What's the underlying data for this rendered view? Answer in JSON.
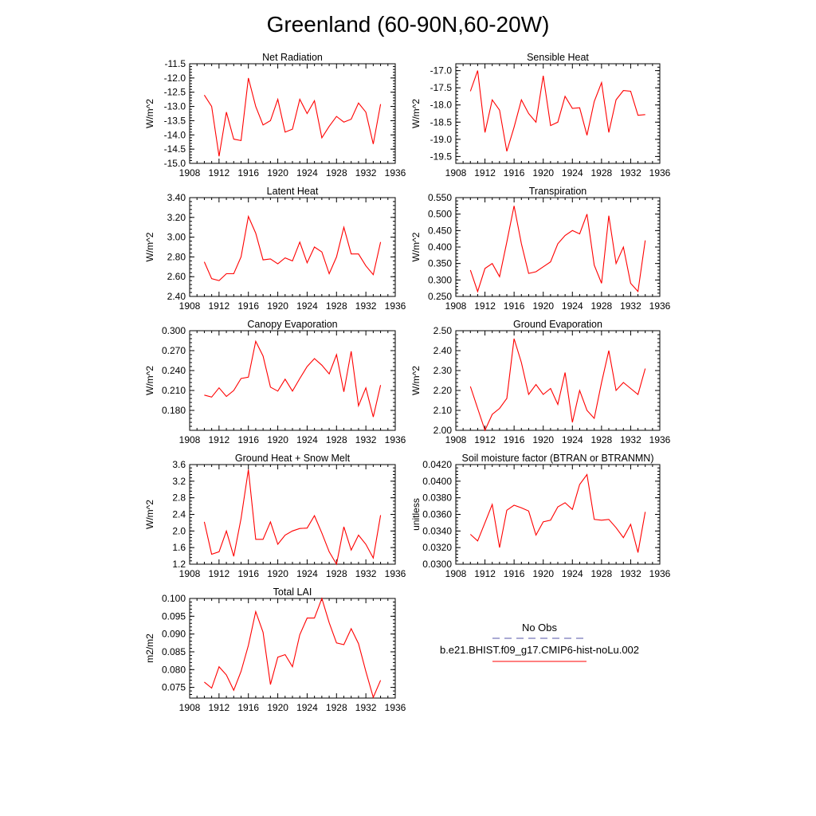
{
  "title": "Greenland (60-90N,60-20W)",
  "colors": {
    "model_line": "#ff0000",
    "obs_line": "#5555aa",
    "axis": "#000000"
  },
  "legend": {
    "obs_label": "No Obs",
    "model_label": "b.e21.BHIST.f09_g17.CMIP6-hist-noLu.002"
  },
  "chart_data": [
    {
      "type": "line",
      "title": "Net Radiation",
      "ylabel": "W/m^2",
      "xlim": [
        1908,
        1936
      ],
      "ylim": [
        -15.0,
        -11.5
      ],
      "xticks": [
        "1908",
        "1912",
        "1916",
        "1920",
        "1924",
        "1928",
        "1932",
        "1936"
      ],
      "yticks": [
        "-15.0",
        "-14.5",
        "-14.0",
        "-13.5",
        "-13.0",
        "-12.5",
        "-12.0",
        "-11.5"
      ],
      "x": [
        1910,
        1911,
        1912,
        1913,
        1914,
        1915,
        1916,
        1917,
        1918,
        1919,
        1920,
        1921,
        1922,
        1923,
        1924,
        1925,
        1926,
        1927,
        1928,
        1929,
        1930,
        1931,
        1932,
        1933,
        1934
      ],
      "y": [
        -12.6,
        -13.0,
        -14.75,
        -13.2,
        -14.15,
        -14.2,
        -12.0,
        -13.0,
        -13.65,
        -13.5,
        -12.75,
        -13.9,
        -13.8,
        -12.75,
        -13.25,
        -12.8,
        -14.1,
        -13.7,
        -13.35,
        -13.55,
        -13.45,
        -12.88,
        -13.2,
        -14.32,
        -12.92
      ]
    },
    {
      "type": "line",
      "title": "Sensible Heat",
      "ylabel": "W/m^2",
      "xlim": [
        1908,
        1936
      ],
      "ylim": [
        -19.7,
        -16.8
      ],
      "xticks": [
        "1908",
        "1912",
        "1916",
        "1920",
        "1924",
        "1928",
        "1932",
        "1936"
      ],
      "yticks": [
        "-19.5",
        "-19.0",
        "-18.5",
        "-18.0",
        "-17.5",
        "-17.0"
      ],
      "x": [
        1910,
        1911,
        1912,
        1913,
        1914,
        1915,
        1916,
        1917,
        1918,
        1919,
        1920,
        1921,
        1922,
        1923,
        1924,
        1925,
        1926,
        1927,
        1928,
        1929,
        1930,
        1931,
        1932,
        1933,
        1934
      ],
      "y": [
        -17.6,
        -17.0,
        -18.8,
        -17.85,
        -18.15,
        -19.35,
        -18.65,
        -17.85,
        -18.25,
        -18.5,
        -17.15,
        -18.6,
        -18.5,
        -17.75,
        -18.1,
        -18.08,
        -18.88,
        -17.9,
        -17.35,
        -18.8,
        -17.85,
        -17.58,
        -17.6,
        -18.3,
        -18.28
      ]
    },
    {
      "type": "line",
      "title": "Latent Heat",
      "ylabel": "W/m^2",
      "xlim": [
        1908,
        1936
      ],
      "ylim": [
        2.4,
        3.4
      ],
      "xticks": [
        "1908",
        "1912",
        "1916",
        "1920",
        "1924",
        "1928",
        "1932",
        "1936"
      ],
      "yticks": [
        "2.40",
        "2.60",
        "2.80",
        "3.00",
        "3.20",
        "3.40"
      ],
      "x": [
        1910,
        1911,
        1912,
        1913,
        1914,
        1915,
        1916,
        1917,
        1918,
        1919,
        1920,
        1921,
        1922,
        1923,
        1924,
        1925,
        1926,
        1927,
        1928,
        1929,
        1930,
        1931,
        1932,
        1933,
        1934
      ],
      "y": [
        2.75,
        2.58,
        2.56,
        2.63,
        2.63,
        2.8,
        3.21,
        3.04,
        2.77,
        2.78,
        2.73,
        2.79,
        2.76,
        2.95,
        2.74,
        2.9,
        2.85,
        2.63,
        2.8,
        3.1,
        2.83,
        2.83,
        2.71,
        2.62,
        2.95
      ]
    },
    {
      "type": "line",
      "title": "Transpiration",
      "ylabel": "W/m^2",
      "xlim": [
        1908,
        1936
      ],
      "ylim": [
        0.25,
        0.55
      ],
      "xticks": [
        "1908",
        "1912",
        "1916",
        "1920",
        "1924",
        "1928",
        "1932",
        "1936"
      ],
      "yticks": [
        "0.250",
        "0.300",
        "0.350",
        "0.400",
        "0.450",
        "0.500",
        "0.550"
      ],
      "x": [
        1910,
        1911,
        1912,
        1913,
        1914,
        1915,
        1916,
        1917,
        1918,
        1919,
        1920,
        1921,
        1922,
        1923,
        1924,
        1925,
        1926,
        1927,
        1928,
        1929,
        1930,
        1931,
        1932,
        1933,
        1934
      ],
      "y": [
        0.33,
        0.265,
        0.335,
        0.35,
        0.31,
        0.415,
        0.525,
        0.41,
        0.32,
        0.325,
        0.34,
        0.355,
        0.41,
        0.435,
        0.45,
        0.44,
        0.5,
        0.345,
        0.29,
        0.495,
        0.35,
        0.4,
        0.29,
        0.265,
        0.42
      ]
    },
    {
      "type": "line",
      "title": "Canopy Evaporation",
      "ylabel": "W/m^2",
      "xlim": [
        1908,
        1936
      ],
      "ylim": [
        0.15,
        0.3
      ],
      "xticks": [
        "1908",
        "1912",
        "1916",
        "1920",
        "1924",
        "1928",
        "1932",
        "1936"
      ],
      "yticks": [
        "0.180",
        "0.210",
        "0.240",
        "0.270",
        "0.300"
      ],
      "x": [
        1910,
        1911,
        1912,
        1913,
        1914,
        1915,
        1916,
        1917,
        1918,
        1919,
        1920,
        1921,
        1922,
        1923,
        1924,
        1925,
        1926,
        1927,
        1928,
        1929,
        1930,
        1931,
        1932,
        1933,
        1934
      ],
      "y": [
        0.203,
        0.2,
        0.214,
        0.201,
        0.21,
        0.228,
        0.23,
        0.284,
        0.262,
        0.215,
        0.209,
        0.227,
        0.209,
        0.228,
        0.246,
        0.258,
        0.248,
        0.235,
        0.264,
        0.208,
        0.269,
        0.187,
        0.214,
        0.17,
        0.218
      ]
    },
    {
      "type": "line",
      "title": "Ground Evaporation",
      "ylabel": "W/m^2",
      "xlim": [
        1908,
        1936
      ],
      "ylim": [
        2.0,
        2.5
      ],
      "xticks": [
        "1908",
        "1912",
        "1916",
        "1920",
        "1924",
        "1928",
        "1932",
        "1936"
      ],
      "yticks": [
        "2.00",
        "2.10",
        "2.20",
        "2.30",
        "2.40",
        "2.50"
      ],
      "x": [
        1910,
        1911,
        1912,
        1913,
        1914,
        1915,
        1916,
        1917,
        1918,
        1919,
        1920,
        1921,
        1922,
        1923,
        1924,
        1925,
        1926,
        1927,
        1928,
        1929,
        1930,
        1931,
        1932,
        1933,
        1934
      ],
      "y": [
        2.22,
        2.11,
        2.0,
        2.08,
        2.11,
        2.16,
        2.46,
        2.34,
        2.18,
        2.23,
        2.18,
        2.21,
        2.13,
        2.29,
        2.04,
        2.2,
        2.1,
        2.06,
        2.24,
        2.4,
        2.2,
        2.24,
        2.21,
        2.18,
        2.31
      ]
    },
    {
      "type": "line",
      "title": "Ground Heat + Snow Melt",
      "ylabel": "W/m^2",
      "xlim": [
        1908,
        1936
      ],
      "ylim": [
        1.2,
        3.6
      ],
      "xticks": [
        "1908",
        "1912",
        "1916",
        "1920",
        "1924",
        "1928",
        "1932",
        "1936"
      ],
      "yticks": [
        "1.2",
        "1.6",
        "2.0",
        "2.4",
        "2.8",
        "3.2",
        "3.6"
      ],
      "x": [
        1910,
        1911,
        1912,
        1913,
        1914,
        1915,
        1916,
        1917,
        1918,
        1919,
        1920,
        1921,
        1922,
        1923,
        1924,
        1925,
        1926,
        1927,
        1928,
        1929,
        1930,
        1931,
        1932,
        1933,
        1934
      ],
      "y": [
        2.22,
        1.44,
        1.5,
        2.0,
        1.39,
        2.3,
        3.48,
        1.8,
        1.8,
        2.22,
        1.68,
        1.9,
        2.0,
        2.06,
        2.07,
        2.37,
        1.95,
        1.5,
        1.2,
        2.1,
        1.54,
        1.9,
        1.68,
        1.35,
        2.38
      ]
    },
    {
      "type": "line",
      "title": "Soil moisture factor (BTRAN or BTRANMN)",
      "ylabel": "unitless",
      "xlim": [
        1908,
        1936
      ],
      "ylim": [
        0.03,
        0.042
      ],
      "xticks": [
        "1908",
        "1912",
        "1916",
        "1920",
        "1924",
        "1928",
        "1932",
        "1936"
      ],
      "yticks": [
        "0.0300",
        "0.0320",
        "0.0340",
        "0.0360",
        "0.0380",
        "0.0400",
        "0.0420"
      ],
      "x": [
        1910,
        1911,
        1912,
        1913,
        1914,
        1915,
        1916,
        1917,
        1918,
        1919,
        1920,
        1921,
        1922,
        1923,
        1924,
        1925,
        1926,
        1927,
        1928,
        1929,
        1930,
        1931,
        1932,
        1933,
        1934
      ],
      "y": [
        0.0336,
        0.0328,
        0.035,
        0.0372,
        0.032,
        0.0365,
        0.0371,
        0.0368,
        0.0364,
        0.0335,
        0.0351,
        0.0353,
        0.0369,
        0.0374,
        0.0366,
        0.0396,
        0.0408,
        0.0354,
        0.0353,
        0.0354,
        0.0344,
        0.0332,
        0.0348,
        0.0314,
        0.0363
      ]
    },
    {
      "type": "line",
      "title": "Total LAI",
      "ylabel": "m2/m2",
      "xlim": [
        1908,
        1936
      ],
      "ylim": [
        0.072,
        0.1
      ],
      "xticks": [
        "1908",
        "1912",
        "1916",
        "1920",
        "1924",
        "1928",
        "1932",
        "1936"
      ],
      "yticks": [
        "0.075",
        "0.080",
        "0.085",
        "0.090",
        "0.095",
        "0.100"
      ],
      "x": [
        1910,
        1911,
        1912,
        1913,
        1914,
        1915,
        1916,
        1917,
        1918,
        1919,
        1920,
        1921,
        1922,
        1923,
        1924,
        1925,
        1926,
        1927,
        1928,
        1929,
        1930,
        1931,
        1932,
        1933,
        1934
      ],
      "y": [
        0.0765,
        0.0748,
        0.0808,
        0.0785,
        0.0742,
        0.0795,
        0.0868,
        0.0963,
        0.0905,
        0.0758,
        0.0835,
        0.0842,
        0.0808,
        0.0898,
        0.0945,
        0.0945,
        0.1,
        0.0932,
        0.0875,
        0.087,
        0.0915,
        0.0873,
        0.0795,
        0.0722,
        0.077
      ]
    }
  ]
}
